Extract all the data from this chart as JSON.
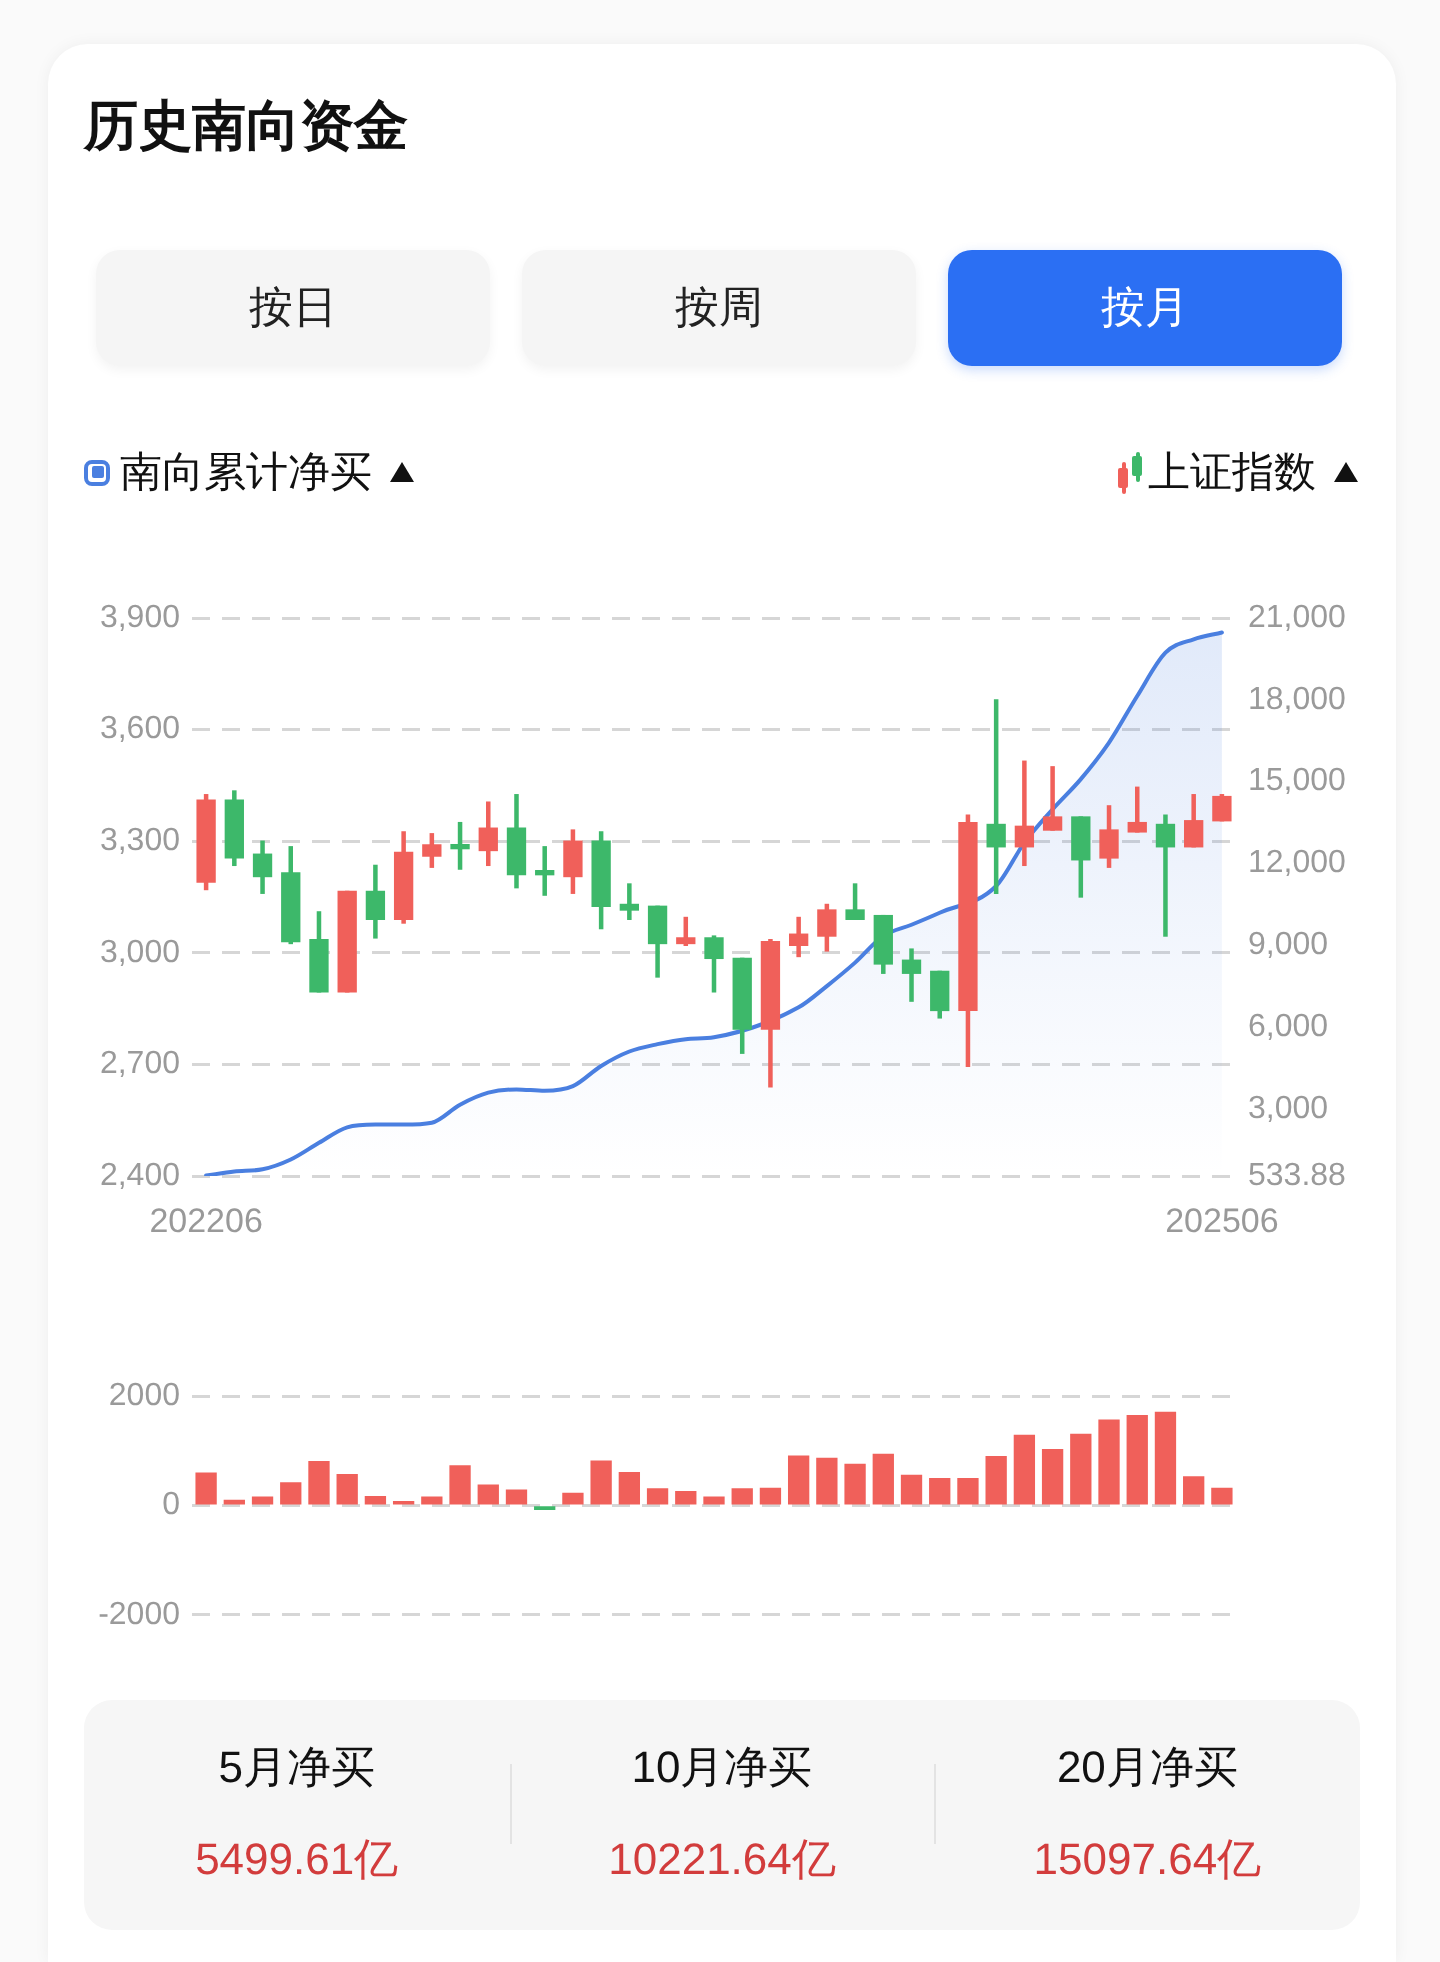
{
  "chart_data": [
    {
      "type": "other",
      "title": "历史南向资金",
      "annotations": [
        "按日",
        "按周",
        "按月"
      ]
    },
    {
      "type": "candlestick",
      "categories": [
        "202206",
        null,
        null,
        null,
        null,
        null,
        null,
        null,
        null,
        null,
        null,
        null,
        null,
        null,
        null,
        null,
        null,
        null,
        null,
        null,
        null,
        null,
        null,
        null,
        null,
        null,
        null,
        null,
        null,
        null,
        null,
        null,
        null,
        null,
        null,
        null,
        "202506"
      ],
      "ylim": [
        2400,
        3900
      ],
      "yticks": [
        {
          "value": 2400,
          "label": "2,400"
        },
        {
          "value": 2700,
          "label": "2,700"
        },
        {
          "value": 3000,
          "label": "3,000"
        },
        {
          "value": 3300,
          "label": "3,300"
        },
        {
          "value": 3600,
          "label": "3,600"
        },
        {
          "value": 3900,
          "label": "3,900"
        }
      ],
      "y2lim": [
        533.88,
        21000
      ],
      "y2ticks": [
        533.88,
        {
          "value": 3000,
          "label": "3,000"
        },
        {
          "value": 6000,
          "label": "6,000"
        },
        {
          "value": 9000,
          "label": "9,000"
        },
        {
          "value": 12000,
          "label": "12,000"
        },
        {
          "value": 15000,
          "label": "15,000"
        },
        {
          "value": 18000,
          "label": "18,000"
        },
        {
          "value": 21000,
          "label": "21,000"
        }
      ],
      "grid": "y",
      "legend": "top",
      "series": [
        {
          "name": "南向累计净买",
          "type": "area",
          "axis": "y2",
          "color": "#4a7fe0",
          "values": [
            550,
            700,
            780,
            1140,
            1750,
            2320,
            2420,
            2420,
            2490,
            3150,
            3590,
            3710,
            3660,
            3830,
            4570,
            5100,
            5370,
            5550,
            5620,
            null,
            null,
            6720,
            7500,
            8360,
            9340,
            9750,
            10190,
            null,
            11170,
            12760,
            13980,
            15090,
            16430,
            18140,
            19730,
            20220,
            20470
          ]
        },
        {
          "name": "上证指数",
          "type": "candlestick",
          "colors": [
            "#f0605a",
            "#3db86a",
            "#3db86a",
            "#3db86a",
            "#3db86a",
            "#f0605a",
            "#3db86a",
            "#f0605a",
            "#f0605a",
            "#3db86a",
            "#f0605a",
            "#3db86a",
            "#3db86a",
            "#f0605a",
            "#3db86a",
            "#3db86a",
            "#3db86a",
            "#f0605a",
            "#3db86a",
            "#3db86a",
            "#f0605a",
            "#f0605a",
            "#f0605a",
            "#3db86a",
            "#3db86a",
            "#3db86a",
            "#3db86a",
            "#f0605a",
            "#3db86a",
            "#f0605a",
            "#f0605a",
            "#3db86a",
            "#f0605a",
            "#f0605a",
            "#3db86a",
            "#f0605a",
            "#f0605a"
          ],
          "ohlc": [
            [
              3190,
              3425,
              3170,
              3410
            ],
            [
              3410,
              3435,
              3235,
              3255
            ],
            [
              3265,
              3300,
              3160,
              3205
            ],
            [
              3215,
              3285,
              3025,
              3030
            ],
            [
              3035,
              3110,
              2895,
              2895
            ],
            [
              2895,
              3165,
              2895,
              3165
            ],
            [
              3165,
              3235,
              3040,
              3090
            ],
            [
              3090,
              3325,
              3080,
              3270
            ],
            [
              3260,
              3320,
              3230,
              3290
            ],
            [
              3290,
              3350,
              3225,
              3280
            ],
            [
              3275,
              3405,
              3235,
              3335
            ],
            [
              3335,
              3425,
              3175,
              3210
            ],
            [
              3220,
              3285,
              3155,
              3210
            ],
            [
              3205,
              3330,
              3160,
              3300
            ],
            [
              3300,
              3325,
              3065,
              3125
            ],
            [
              3130,
              3185,
              3090,
              3115
            ],
            [
              3125,
              3125,
              2935,
              3025
            ],
            [
              3025,
              3095,
              3020,
              3040
            ],
            [
              3040,
              3045,
              2895,
              2985
            ],
            [
              2985,
              2985,
              2730,
              2795
            ],
            [
              2795,
              3035,
              2640,
              3030
            ],
            [
              3020,
              3095,
              2990,
              3050
            ],
            [
              3045,
              3130,
              3005,
              3115
            ],
            [
              3115,
              3185,
              3090,
              3090
            ],
            [
              3100,
              3100,
              2945,
              2970
            ],
            [
              2980,
              3010,
              2870,
              2945
            ],
            [
              2950,
              2950,
              2825,
              2845
            ],
            [
              2845,
              3370,
              2695,
              3350
            ],
            [
              3345,
              3680,
              3160,
              3285
            ],
            [
              3285,
              3515,
              3235,
              3340
            ],
            [
              3330,
              3500,
              3330,
              3365
            ],
            [
              3365,
              3365,
              3150,
              3250
            ],
            [
              3255,
              3395,
              3230,
              3330
            ],
            [
              3325,
              3445,
              3325,
              3350
            ],
            [
              3345,
              3370,
              3045,
              3285
            ],
            [
              3285,
              3425,
              3285,
              3355
            ],
            [
              3355,
              3425,
              3355,
              3420
            ]
          ]
        }
      ]
    },
    {
      "type": "bar",
      "categories": [
        "202206",
        null,
        null,
        null,
        null,
        null,
        null,
        null,
        null,
        null,
        null,
        null,
        null,
        null,
        null,
        null,
        null,
        null,
        null,
        null,
        null,
        null,
        null,
        null,
        null,
        null,
        null,
        null,
        null,
        null,
        null,
        null,
        null,
        null,
        null,
        null,
        "202506"
      ],
      "values": [
        590,
        90,
        150,
        410,
        800,
        560,
        160,
        70,
        150,
        720,
        370,
        280,
        -70,
        220,
        810,
        600,
        300,
        250,
        150,
        300,
        310,
        900,
        860,
        750,
        930,
        550,
        490,
        490,
        890,
        1280,
        1020,
        1300,
        1560,
        1640,
        1700,
        520,
        310
      ],
      "colors": [
        "#f0605a",
        "#f0605a",
        "#f0605a",
        "#f0605a",
        "#f0605a",
        "#f0605a",
        "#f0605a",
        "#f0605a",
        "#f0605a",
        "#f0605a",
        "#f0605a",
        "#f0605a",
        "#3db86a",
        "#f0605a",
        "#f0605a",
        "#f0605a",
        "#f0605a",
        "#f0605a",
        "#f0605a",
        "#f0605a",
        "#f0605a",
        "#f0605a",
        "#f0605a",
        "#f0605a",
        "#f0605a",
        "#f0605a",
        "#f0605a",
        "#f0605a",
        "#f0605a",
        "#f0605a",
        "#f0605a",
        "#f0605a",
        "#f0605a",
        "#f0605a",
        "#f0605a",
        "#f0605a",
        "#f0605a"
      ],
      "ylim": [
        -2000,
        2000
      ],
      "yticks": [
        -2000,
        0,
        2000
      ],
      "grid": "y",
      "tick_labels": "y"
    },
    {
      "type": "other",
      "annotations": [
        "5月净买",
        "5499.61亿",
        "10月净买",
        "10221.64亿",
        "20月净买",
        "15097.64亿"
      ]
    }
  ]
}
